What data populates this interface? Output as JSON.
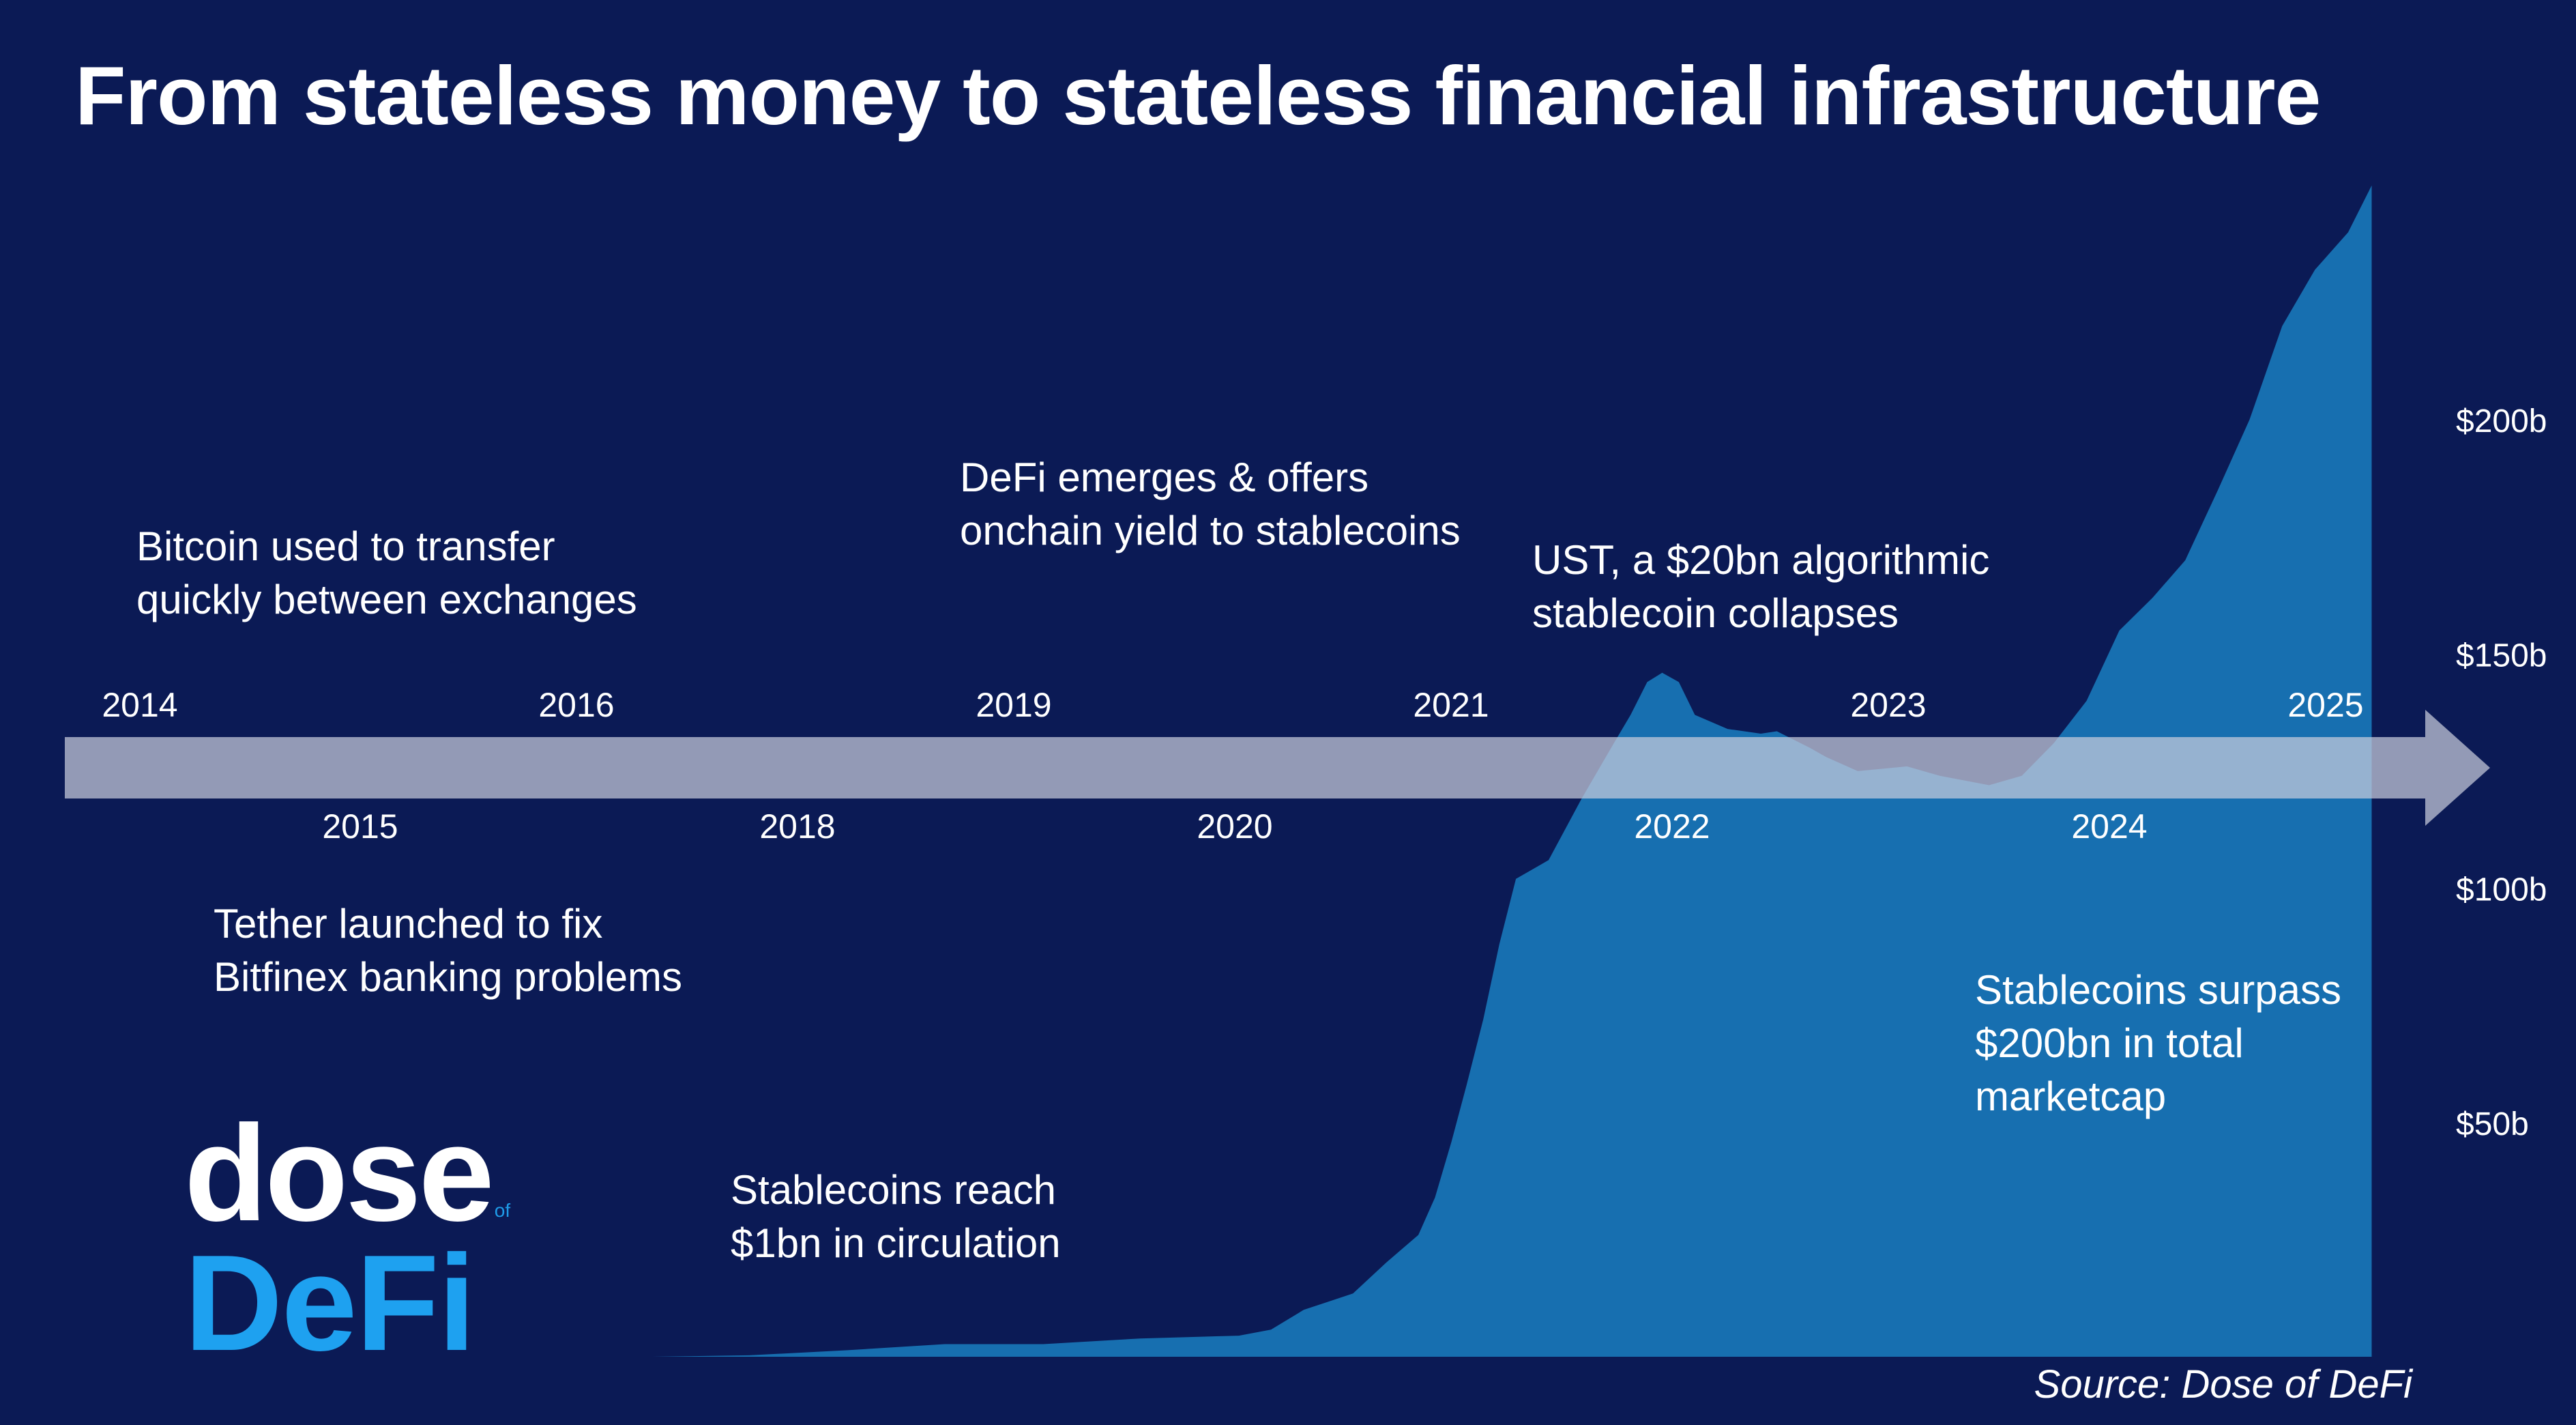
{
  "title": "From stateless money to stateless financial infrastructure",
  "source": "Source: Dose of DeFi",
  "logo": {
    "top": "dose",
    "of": "of",
    "bottom": "DeFi"
  },
  "colors": {
    "background": "#0b1a55",
    "area": "#176fb0",
    "arrow": "#c8ccdc",
    "logo_accent": "#1ea1f0"
  },
  "annotations": [
    {
      "lines": [
        "Bitcoin used to transfer",
        "quickly between exchanges"
      ]
    },
    {
      "lines": [
        "Tether launched to fix",
        "Bitfinex banking problems"
      ]
    },
    {
      "lines": [
        "Stablecoins reach",
        "$1bn in circulation"
      ]
    },
    {
      "lines": [
        "DeFi emerges & offers",
        "onchain yield to stablecoins"
      ]
    },
    {
      "lines": [
        "UST, a $20bn algorithmic",
        "stablecoin collapses"
      ]
    },
    {
      "lines": [
        "Stablecoins surpass",
        "$200bn in total",
        "marketcap"
      ]
    }
  ],
  "chart_data": {
    "type": "area",
    "title": "From stateless money to stateless financial infrastructure",
    "xlabel": "",
    "ylabel": "",
    "grid": false,
    "timeline_years_upper": [
      "2014",
      "2016",
      "2019",
      "2021",
      "2023",
      "2025"
    ],
    "timeline_years_lower": [
      "2015",
      "2018",
      "2020",
      "2022",
      "2024"
    ],
    "y_ticks": [
      {
        "value": 50,
        "label": "$50b"
      },
      {
        "value": 100,
        "label": "$100b"
      },
      {
        "value": 150,
        "label": "$150b"
      },
      {
        "value": 200,
        "label": "$200b"
      }
    ],
    "ylim": [
      0,
      255
    ],
    "xlim": [
      "2014-01-01",
      "2025-12-31"
    ],
    "series": [
      {
        "values_unit": "USD billions",
        "points": [
          [
            "2017-01-01",
            0.0
          ],
          [
            "2017-07-01",
            0.3
          ],
          [
            "2018-01-01",
            1.4
          ],
          [
            "2018-07-01",
            2.7
          ],
          [
            "2019-01-01",
            2.7
          ],
          [
            "2019-07-01",
            3.9
          ],
          [
            "2020-01-01",
            4.5
          ],
          [
            "2020-03-01",
            5.8
          ],
          [
            "2020-05-01",
            10.0
          ],
          [
            "2020-08-01",
            13.5
          ],
          [
            "2020-10-01",
            20.0
          ],
          [
            "2020-12-01",
            26.0
          ],
          [
            "2021-01-01",
            34.0
          ],
          [
            "2021-02-01",
            46.0
          ],
          [
            "2021-03-01",
            58.0
          ],
          [
            "2021-04-01",
            72.0
          ],
          [
            "2021-05-01",
            88.0
          ],
          [
            "2021-06-01",
            102.0
          ],
          [
            "2021-08-01",
            106.0
          ],
          [
            "2021-10-01",
            119.0
          ],
          [
            "2021-12-01",
            131.0
          ],
          [
            "2022-01-01",
            137.0
          ],
          [
            "2022-02-01",
            144.0
          ],
          [
            "2022-03-01",
            146.0
          ],
          [
            "2022-04-01",
            144.0
          ],
          [
            "2022-05-01",
            137.0
          ],
          [
            "2022-07-01",
            134.0
          ],
          [
            "2022-09-01",
            133.0
          ],
          [
            "2022-10-01",
            133.5
          ],
          [
            "2022-12-01",
            130.0
          ],
          [
            "2023-01-01",
            128.0
          ],
          [
            "2023-03-01",
            125.0
          ],
          [
            "2023-06-01",
            126.0
          ],
          [
            "2023-08-01",
            124.0
          ],
          [
            "2023-11-01",
            122.0
          ],
          [
            "2024-01-01",
            124.0
          ],
          [
            "2024-03-01",
            131.0
          ],
          [
            "2024-05-01",
            140.0
          ],
          [
            "2024-07-01",
            155.0
          ],
          [
            "2024-09-01",
            162.0
          ],
          [
            "2024-11-01",
            170.0
          ],
          [
            "2025-01-01",
            185.0
          ],
          [
            "2025-03-01",
            200.0
          ],
          [
            "2025-05-01",
            220.0
          ],
          [
            "2025-07-01",
            232.0
          ],
          [
            "2025-09-01",
            240.0
          ],
          [
            "2025-10-15",
            250.0
          ]
        ]
      }
    ]
  }
}
